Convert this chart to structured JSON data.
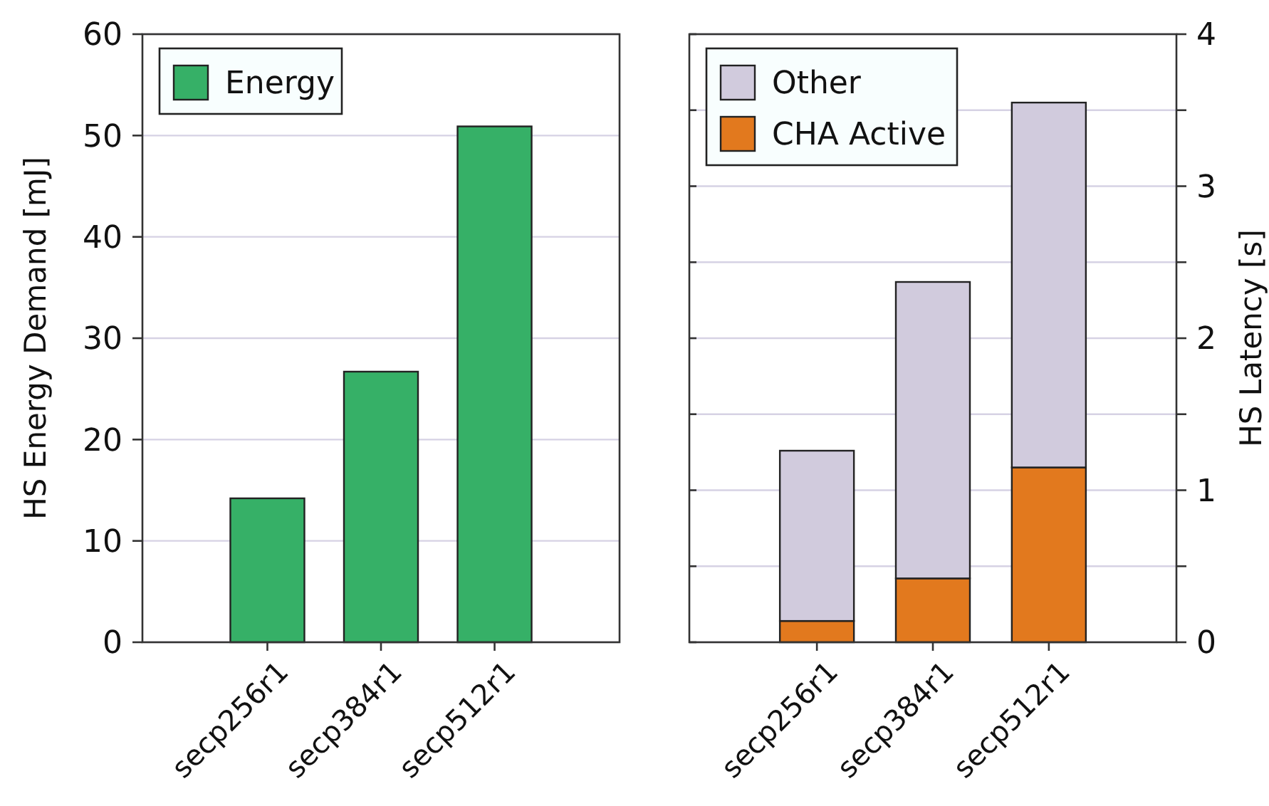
{
  "chart_data": [
    {
      "type": "bar",
      "categories": [
        "secp256r1",
        "secp384r1",
        "secp512r1"
      ],
      "ylabel": "HS Energy Demand [mJ]",
      "ylim": [
        0,
        60
      ],
      "yticks": [
        0,
        10,
        20,
        30,
        40,
        50,
        60
      ],
      "grid": "y",
      "legend": "top left",
      "series": [
        {
          "name": "Energy",
          "color": "#36b067",
          "values": [
            14.2,
            26.7,
            50.9
          ]
        }
      ]
    },
    {
      "type": "bar",
      "categories": [
        "secp256r1",
        "secp384r1",
        "secp512r1"
      ],
      "y2label": "HS Latency [s]",
      "y2lim": [
        0,
        4
      ],
      "y2ticks": [
        0,
        {
          "value": 0.5,
          "label": null
        },
        1,
        {
          "value": 1.5,
          "label": null
        },
        2,
        {
          "value": 2.5,
          "label": null
        },
        3,
        {
          "value": 3.5,
          "label": null
        },
        4
      ],
      "grid": "y",
      "legend": "top left",
      "stacked": true,
      "series": [
        {
          "name": "CHA Active",
          "color": "#e2791e",
          "values": [
            0.14,
            0.42,
            1.15
          ],
          "axis": "y2"
        },
        {
          "name": "Other",
          "color": "#d1cbdd",
          "values": [
            1.12,
            1.95,
            2.4
          ],
          "axis": "y2"
        }
      ]
    }
  ]
}
